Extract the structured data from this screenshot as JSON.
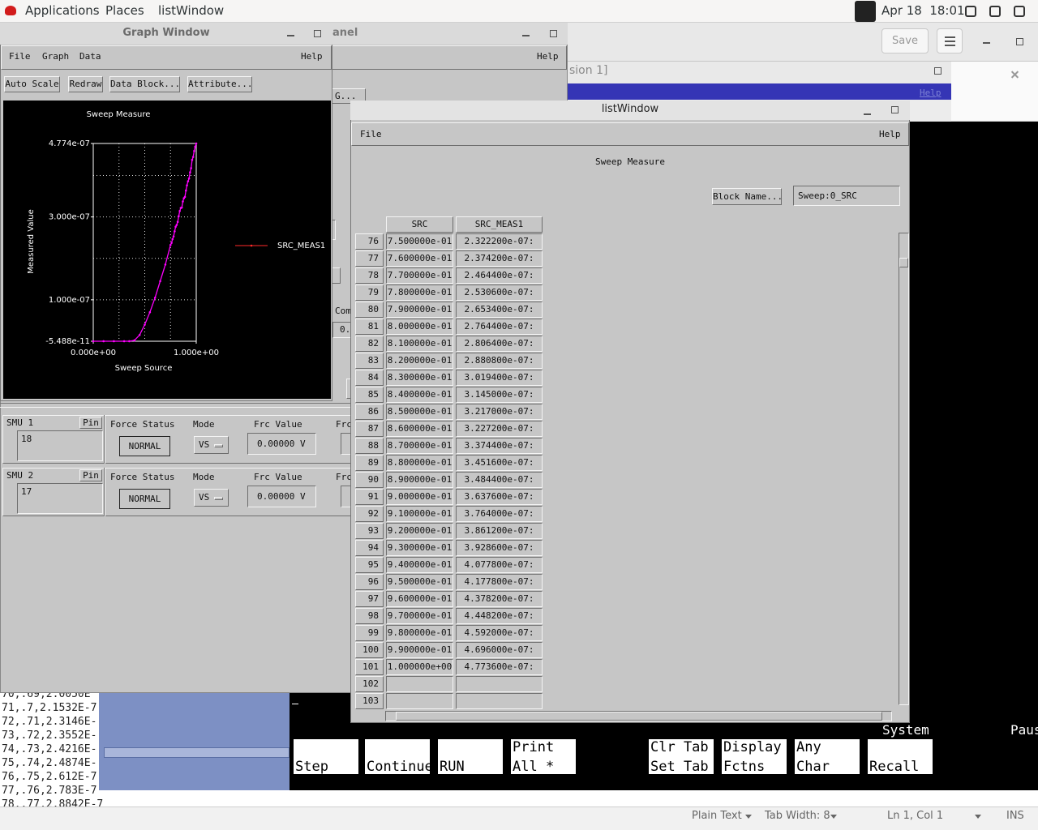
{
  "topbar": {
    "menus": [
      "Applications",
      "Places",
      "listWindow"
    ],
    "clock": "Apr 18  18:01"
  },
  "editor": {
    "save": "Save",
    "terminal_lines": [
      "70,.69,2.0050E",
      "71,.7,2.1532E-7",
      "72,.71,2.3146E-",
      "73,.72,2.3552E-",
      "74,.73,2.4216E-",
      "75,.74,2.4874E-",
      "76,.75,2.612E-7",
      "77,.76,2.783E-7",
      "78,.77,2.8842E-7"
    ],
    "status": [
      "Plain Text",
      "Tab Width: 8",
      "Ln 1, Col 1",
      "INS"
    ]
  },
  "session_window": {
    "title_fragment": "sion 1]",
    "help": "Help"
  },
  "back_panel": {
    "title_fragment": "anel",
    "help": "Help",
    "button_fragment": "G...",
    "label_fragment": "Com",
    "field_fragment": "0."
  },
  "terminal": {
    "status": "System",
    "status_right": "Paus",
    "softkeys": [
      [
        "Step"
      ],
      [
        "Continue"
      ],
      [
        "RUN"
      ],
      [
        "Print",
        "All *"
      ],
      [
        "Clr Tab",
        "Set Tab"
      ],
      [
        "Display",
        "Fctns"
      ],
      [
        "Any",
        "Char"
      ],
      [
        "Recall"
      ]
    ]
  },
  "graph_window": {
    "title": "Graph Window",
    "menus": [
      "File",
      "Graph",
      "Data"
    ],
    "help": "Help",
    "buttons": [
      "Auto Scale",
      "Redraw",
      "Data Block...",
      "Attribute..."
    ],
    "chart": {
      "type": "line",
      "title": "Sweep Measure",
      "x_label": "Sweep Source",
      "y_label": "Measured Value",
      "xlim": [
        0,
        1
      ],
      "ylim": [
        -5.488e-11,
        4.774e-07
      ],
      "xticks": [
        {
          "value": 0,
          "label": "0.000e+00"
        },
        {
          "value": 1,
          "label": "1.000e+00"
        }
      ],
      "yticks": [
        {
          "value": -5.488e-11,
          "label": "-5.488e-11"
        },
        {
          "value": 1e-07,
          "label": "1.000e-07"
        },
        {
          "value": 3e-07,
          "label": "3.000e-07"
        },
        {
          "value": 4.774e-07,
          "label": "4.774e-07"
        }
      ],
      "grid": true,
      "xgrid": [
        0.25,
        0.5,
        0.75
      ],
      "ygrid": [
        1e-07,
        2e-07,
        3e-07,
        4e-07
      ],
      "legend_color": "#ff2a2a",
      "series": [
        {
          "name": "SRC_MEAS1",
          "color": "#ff00ff",
          "x": [
            0,
            0.1,
            0.2,
            0.3,
            0.35,
            0.4,
            0.45,
            0.5,
            0.55,
            0.6,
            0.65,
            0.7,
            0.75,
            0.76,
            0.77,
            0.78,
            0.79,
            0.8,
            0.81,
            0.82,
            0.83,
            0.84,
            0.85,
            0.86,
            0.87,
            0.88,
            0.89,
            0.9,
            0.91,
            0.92,
            0.93,
            0.94,
            0.95,
            0.96,
            0.97,
            0.98,
            0.99,
            1
          ],
          "values": [
            -5.488e-11,
            0,
            0,
            0,
            0,
            2e-09,
            1.5e-08,
            4e-08,
            7e-08,
            1.05e-07,
            1.45e-07,
            1.85e-07,
            2.3222e-07,
            2.3742e-07,
            2.4644e-07,
            2.5306e-07,
            2.6534e-07,
            2.7644e-07,
            2.8064e-07,
            2.8808e-07,
            3.0194e-07,
            3.145e-07,
            3.217e-07,
            3.2272e-07,
            3.3744e-07,
            3.4516e-07,
            3.4844e-07,
            3.6376e-07,
            3.764e-07,
            3.8612e-07,
            3.9286e-07,
            4.0778e-07,
            4.1778e-07,
            4.3782e-07,
            4.4482e-07,
            4.592e-07,
            4.696e-07,
            4.7736e-07
          ]
        }
      ]
    }
  },
  "smu_panels": [
    {
      "name": "SMU 1",
      "pin": "Pin",
      "value": "18",
      "force_status_label": "Force Status",
      "force_status": "NORMAL",
      "mode_label": "Mode",
      "mode": "VS",
      "frc_value_label": "Frc Value",
      "frc_value": "0.00000 V",
      "cut_label": "Frc"
    },
    {
      "name": "SMU 2",
      "pin": "Pin",
      "value": "17",
      "force_status_label": "Force Status",
      "force_status": "NORMAL",
      "mode_label": "Mode",
      "mode": "VS",
      "frc_value_label": "Frc Value",
      "frc_value": "0.00000 V",
      "cut_label": "Frc"
    }
  ],
  "list_window": {
    "title": "listWindow",
    "menu": "File",
    "help": "Help",
    "heading": "Sweep Measure",
    "block_button": "Block Name...",
    "block_field": "Sweep:0_SRC",
    "columns": [
      "SRC",
      "SRC_MEAS1"
    ],
    "rows": [
      [
        76,
        "7.500000e-01",
        "2.322200e-07:"
      ],
      [
        77,
        "7.600000e-01",
        "2.374200e-07:"
      ],
      [
        78,
        "7.700000e-01",
        "2.464400e-07:"
      ],
      [
        79,
        "7.800000e-01",
        "2.530600e-07:"
      ],
      [
        80,
        "7.900000e-01",
        "2.653400e-07:"
      ],
      [
        81,
        "8.000000e-01",
        "2.764400e-07:"
      ],
      [
        82,
        "8.100000e-01",
        "2.806400e-07:"
      ],
      [
        83,
        "8.200000e-01",
        "2.880800e-07:"
      ],
      [
        84,
        "8.300000e-01",
        "3.019400e-07:"
      ],
      [
        85,
        "8.400000e-01",
        "3.145000e-07:"
      ],
      [
        86,
        "8.500000e-01",
        "3.217000e-07:"
      ],
      [
        87,
        "8.600000e-01",
        "3.227200e-07:"
      ],
      [
        88,
        "8.700000e-01",
        "3.374400e-07:"
      ],
      [
        89,
        "8.800000e-01",
        "3.451600e-07:"
      ],
      [
        90,
        "8.900000e-01",
        "3.484400e-07:"
      ],
      [
        91,
        "9.000000e-01",
        "3.637600e-07:"
      ],
      [
        92,
        "9.100000e-01",
        "3.764000e-07:"
      ],
      [
        93,
        "9.200000e-01",
        "3.861200e-07:"
      ],
      [
        94,
        "9.300000e-01",
        "3.928600e-07:"
      ],
      [
        95,
        "9.400000e-01",
        "4.077800e-07:"
      ],
      [
        96,
        "9.500000e-01",
        "4.177800e-07:"
      ],
      [
        97,
        "9.600000e-01",
        "4.378200e-07:"
      ],
      [
        98,
        "9.700000e-01",
        "4.448200e-07:"
      ],
      [
        99,
        "9.800000e-01",
        "4.592000e-07:"
      ],
      [
        100,
        "9.900000e-01",
        "4.696000e-07:"
      ],
      [
        101,
        "1.000000e+00",
        "4.773600e-07:"
      ],
      [
        102
      ],
      [
        103
      ]
    ]
  }
}
